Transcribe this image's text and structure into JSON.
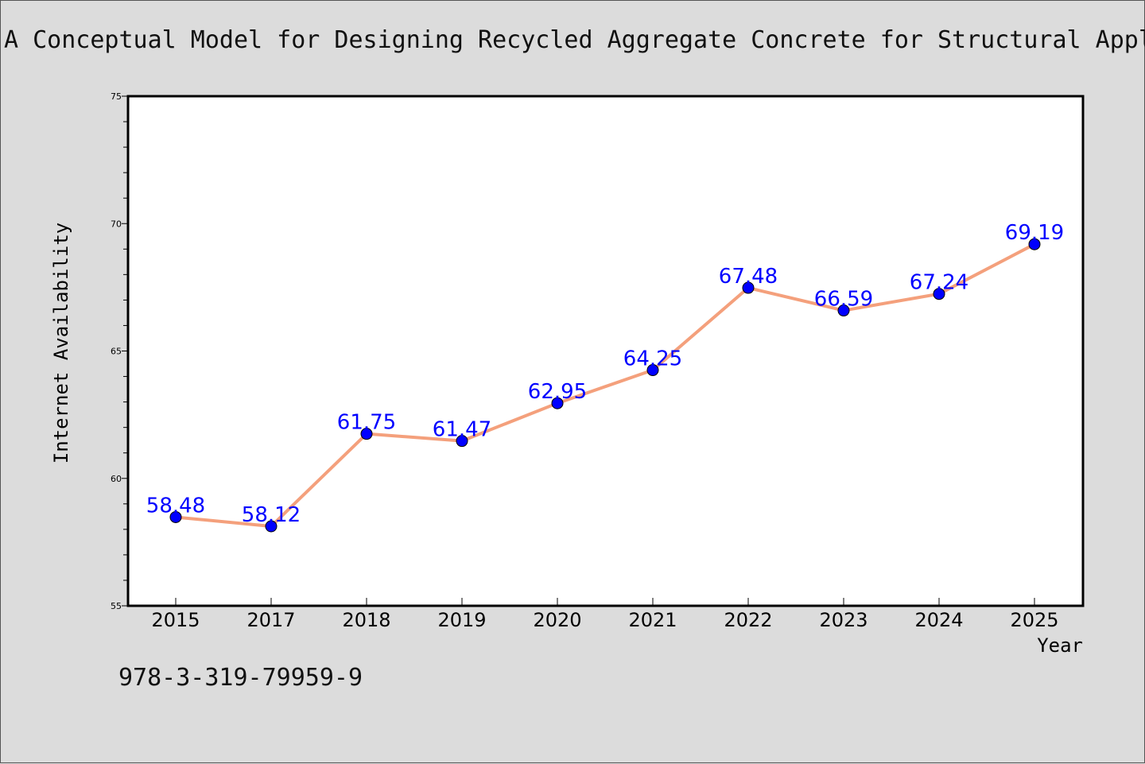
{
  "isbn": "978-3-319-79959-9",
  "chart_data": {
    "type": "line",
    "title": "A Conceptual Model for Designing Recycled Aggregate Concrete for Structural Appl",
    "xlabel": "Year",
    "ylabel": "Internet Availability",
    "categories": [
      "2015",
      "2017",
      "2018",
      "2019",
      "2020",
      "2021",
      "2022",
      "2023",
      "2024",
      "2025"
    ],
    "series": [
      {
        "values": [
          58.48,
          58.12,
          61.75,
          61.47,
          62.95,
          64.25,
          67.48,
          66.59,
          67.24,
          69.19
        ]
      }
    ],
    "data_labels": [
      "58.48",
      "58.12",
      "61.75",
      "61.47",
      "62.95",
      "64.25",
      "67.48",
      "66.59",
      "67.24",
      "69.19"
    ],
    "ylim": [
      55,
      75
    ],
    "yticks": [
      55,
      60,
      65,
      70,
      75
    ],
    "yticks_minor_step": 1,
    "grid": false,
    "line_color": "#f4a07c",
    "marker_color": "#0000ff",
    "label_color": "#0000ff",
    "background": "#dcdcdc",
    "plot_background": "#ffffff"
  }
}
